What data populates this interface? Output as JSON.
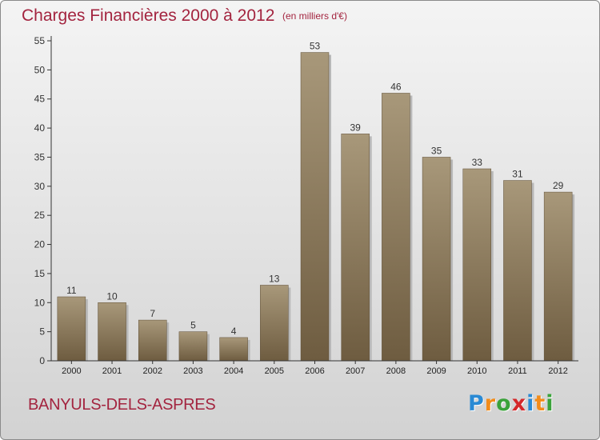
{
  "header": {
    "title": "Charges Financières 2000 à 2012",
    "subtitle": "(en milliers d'€)"
  },
  "footer": {
    "commune": "BANYULS-DELS-ASPRES",
    "logo_letters": [
      {
        "char": "P",
        "color": "#2a8ad4"
      },
      {
        "char": "r",
        "color": "#f28c1a"
      },
      {
        "char": "o",
        "color": "#3aa23a"
      },
      {
        "char": "x",
        "color": "#d4282a"
      },
      {
        "char": "i",
        "color": "#2a8ad4"
      },
      {
        "char": "t",
        "color": "#f28c1a"
      },
      {
        "char": "i",
        "color": "#3aa23a"
      }
    ]
  },
  "chart_data": {
    "type": "bar",
    "title": "Charges Financières 2000 à 2012",
    "subtitle": "(en milliers d'€)",
    "categories": [
      "2000",
      "2001",
      "2002",
      "2003",
      "2004",
      "2005",
      "2006",
      "2007",
      "2008",
      "2009",
      "2010",
      "2011",
      "2012"
    ],
    "values": [
      11,
      10,
      7,
      5,
      4,
      13,
      53,
      39,
      46,
      35,
      33,
      31,
      29
    ],
    "ylim": [
      0,
      55
    ],
    "yticks": [
      0,
      5,
      10,
      15,
      20,
      25,
      30,
      35,
      40,
      45,
      50,
      55
    ],
    "grid": false,
    "bar_color_top": "#a8987a",
    "bar_color_bottom": "#6e5c40",
    "axis_color": "#333333"
  }
}
